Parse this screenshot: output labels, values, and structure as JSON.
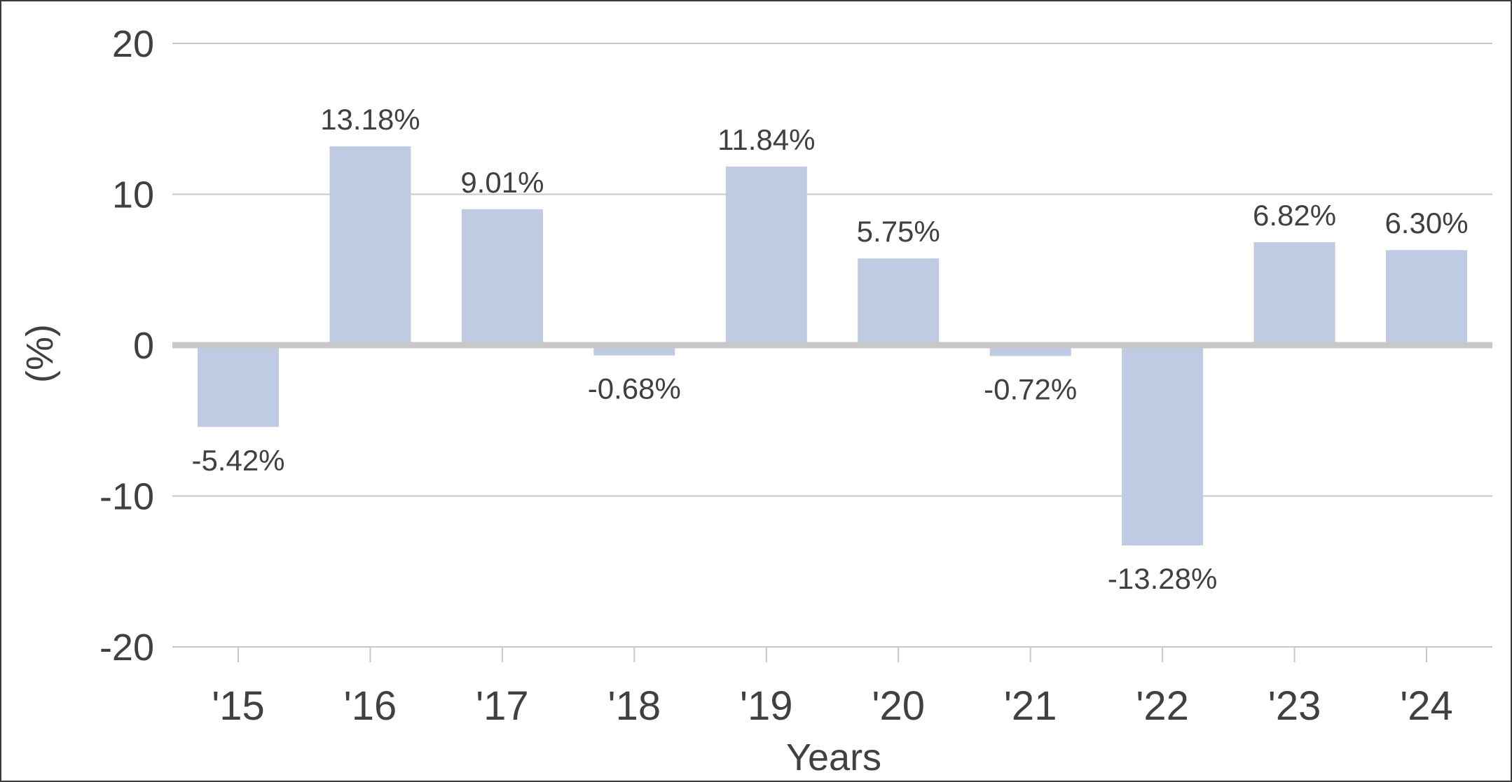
{
  "chart_data": {
    "type": "bar",
    "categories": [
      "'15",
      "'16",
      "'17",
      "'18",
      "'19",
      "'20",
      "'21",
      "'22",
      "'23",
      "'24"
    ],
    "values": [
      -5.42,
      13.18,
      9.01,
      -0.68,
      11.84,
      5.75,
      -0.72,
      -13.28,
      6.82,
      6.3
    ],
    "data_labels": [
      "-5.42%",
      "13.18%",
      "9.01%",
      "-0.68%",
      "11.84%",
      "5.75%",
      "-0.72%",
      "-13.28%",
      "6.82%",
      "6.30%"
    ],
    "title": "",
    "xlabel": "Years",
    "ylabel": "(%)",
    "ylim": [
      -20,
      20
    ],
    "yticks": [
      20,
      10,
      0,
      -10,
      -20
    ],
    "grid": true,
    "legend": "none",
    "colors": {
      "bar": "#bfcbe2",
      "grid": "#c8c8c8",
      "zero_line": "#c8c8c8",
      "text": "#404040",
      "frame": "#3a3a3a"
    }
  }
}
